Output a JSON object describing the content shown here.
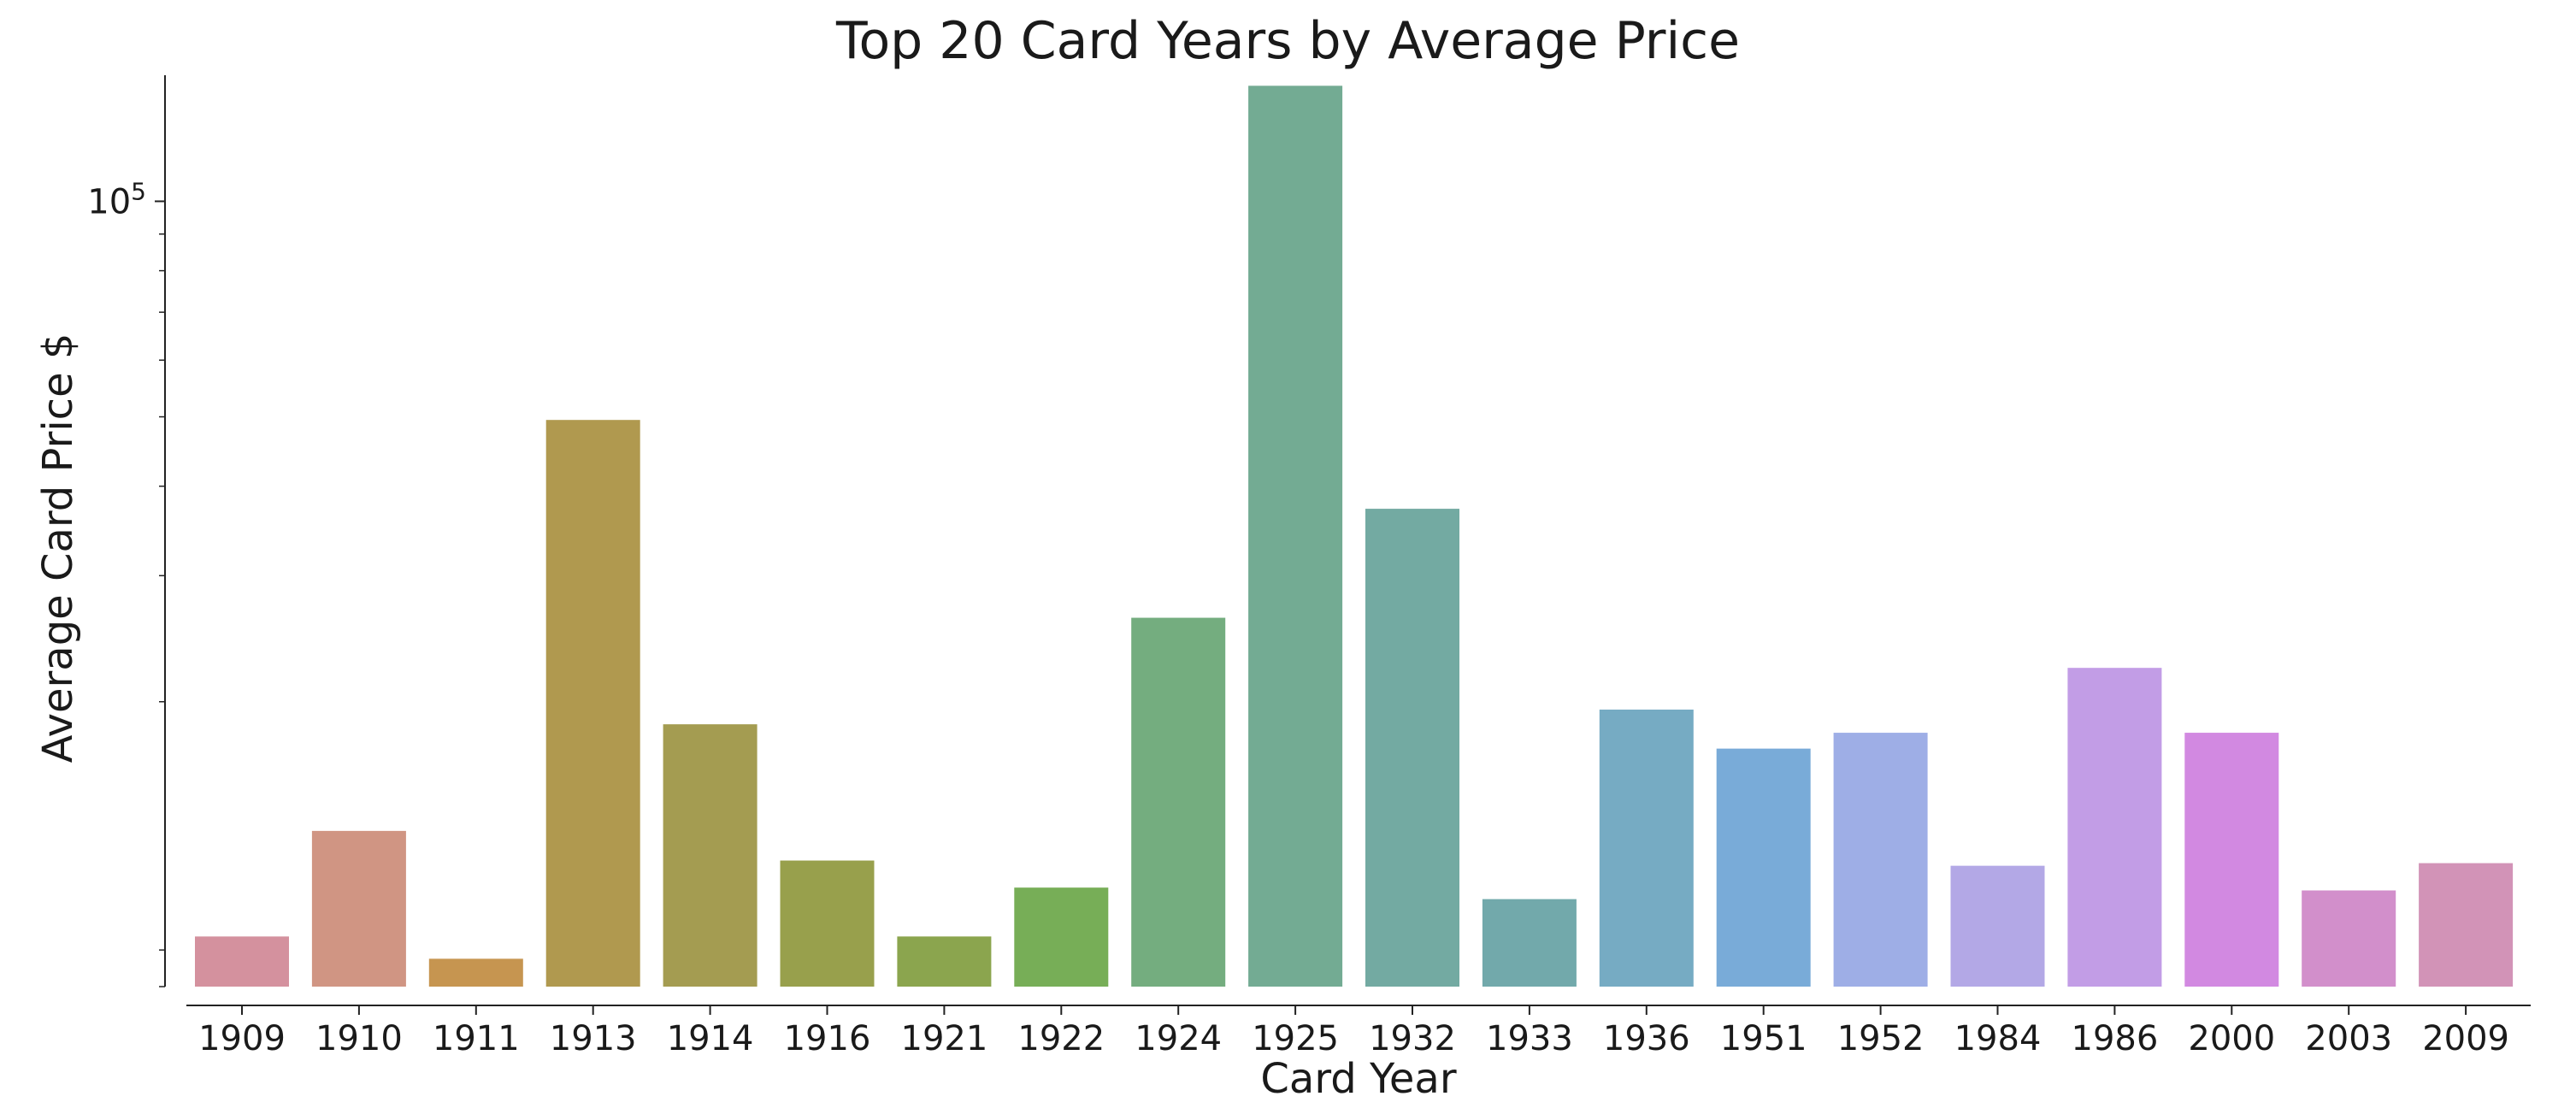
{
  "chart_data": {
    "type": "bar",
    "title": "Top 20 Card Years by Average Price",
    "xlabel": "Card Year",
    "ylabel": "Average Card Price $",
    "yscale": "log",
    "ylim": [
      8000,
      150000
    ],
    "yticks": [
      {
        "value": 100000,
        "base": "10",
        "exp": "5"
      }
    ],
    "categories": [
      "1909",
      "1910",
      "1911",
      "1913",
      "1914",
      "1916",
      "1921",
      "1922",
      "1924",
      "1925",
      "1932",
      "1933",
      "1936",
      "1951",
      "1952",
      "1984",
      "1986",
      "2000",
      "2003",
      "2009"
    ],
    "values": [
      9400,
      13200,
      8750,
      49500,
      18600,
      12000,
      9400,
      11000,
      26200,
      145000,
      37200,
      10600,
      19500,
      17200,
      18100,
      11800,
      22300,
      18100,
      10900,
      11900
    ],
    "colors": [
      "#d4919e",
      "#d09583",
      "#c69550",
      "#b0994f",
      "#a49c51",
      "#98a04c",
      "#8ba54e",
      "#77ae57",
      "#74ad7f",
      "#73ab93",
      "#73aaa2",
      "#72a9ab",
      "#76abc3",
      "#79abd8",
      "#9eaee6",
      "#b3a8e6",
      "#c29de6",
      "#d289e1",
      "#d28fcb",
      "#d293b7"
    ],
    "grid": false,
    "legend": "none"
  }
}
